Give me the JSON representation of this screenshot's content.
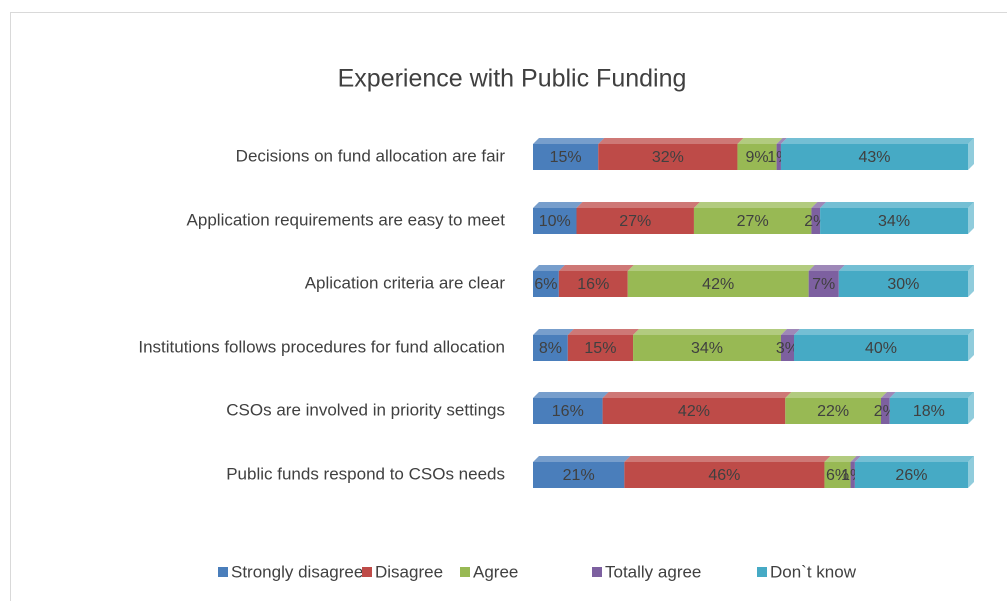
{
  "chart_data": {
    "type": "bar",
    "orientation": "horizontal",
    "stacked": "percent",
    "title": "Experience with Public Funding",
    "categories": [
      "Decisions on fund allocation are fair",
      "Application requirements are easy to meet",
      "Aplication criteria are clear",
      "Institutions follows procedures for fund allocation",
      "CSOs are involved in priority settings",
      "Public funds respond to CSOs needs"
    ],
    "series": [
      {
        "name": "Strongly disagree",
        "color": "#4a7ebb",
        "values": [
          15,
          10,
          6,
          8,
          16,
          21
        ],
        "value_labels": [
          "15%",
          "10%",
          "6%",
          "8%",
          "16%",
          "21%"
        ]
      },
      {
        "name": "Disagree",
        "color": "#be4b48",
        "values": [
          32,
          27,
          16,
          15,
          42,
          46
        ],
        "value_labels": [
          "32%",
          "27%",
          "16%",
          "15%",
          "42%",
          "46%"
        ]
      },
      {
        "name": "Agree",
        "color": "#98b954",
        "values": [
          9,
          27,
          42,
          34,
          22,
          6
        ],
        "value_labels": [
          "9%",
          "27%",
          "42%",
          "34%",
          "22%",
          "6%"
        ]
      },
      {
        "name": "Totally agree",
        "color": "#7d60a0",
        "values": [
          1,
          2,
          7,
          3,
          2,
          1
        ],
        "value_labels": [
          "1%",
          "2%",
          "7%",
          "3%",
          "2%",
          "1%"
        ]
      },
      {
        "name": "Don`t know",
        "color": "#46aac5",
        "values": [
          43,
          34,
          30,
          40,
          18,
          26
        ],
        "value_labels": [
          "43%",
          "34%",
          "30%",
          "40%",
          "18%",
          "26%"
        ]
      }
    ],
    "legend": "bottom"
  }
}
